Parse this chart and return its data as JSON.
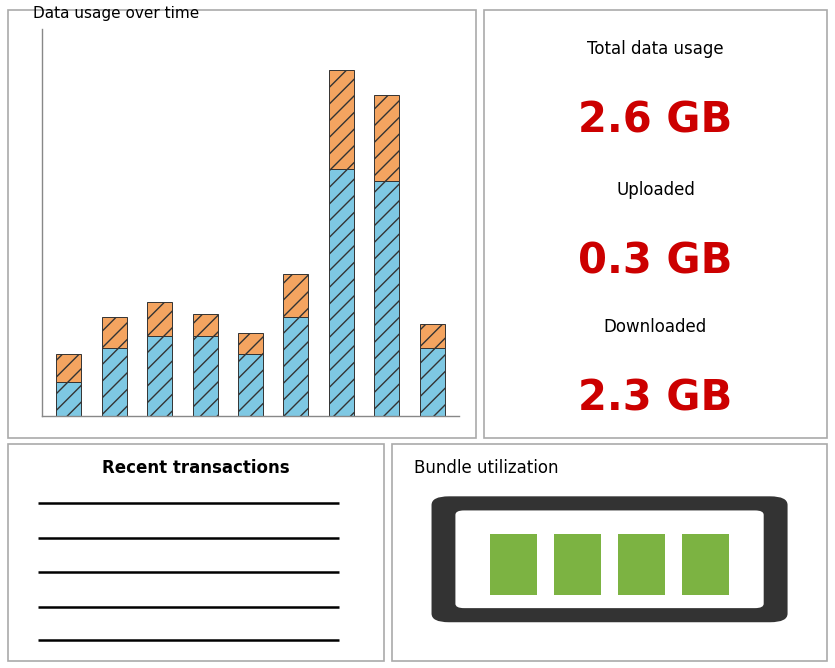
{
  "title_data_usage": "Data usage over time",
  "bar_downloaded": [
    0.55,
    1.1,
    1.3,
    1.3,
    1.0,
    1.6,
    4.0,
    3.8,
    1.1
  ],
  "bar_uploaded": [
    0.45,
    0.5,
    0.55,
    0.35,
    0.35,
    0.7,
    1.6,
    1.4,
    0.4
  ],
  "bar_color_downloaded": "#7EC8E3",
  "bar_color_uploaded": "#F4A460",
  "total_label": "Total data usage",
  "total_value": "2.6 GB",
  "uploaded_label": "Uploaded",
  "uploaded_value": "0.3 GB",
  "downloaded_label": "Downloaded",
  "downloaded_value": "2.3 GB",
  "metric_color": "#CC0000",
  "recent_title": "Recent transactions",
  "bundle_title": "Bundle utilization",
  "green_color": "#7CB342",
  "dark_color": "#333333",
  "panel_border_color": "#AAAAAA",
  "num_green_blocks": 4
}
